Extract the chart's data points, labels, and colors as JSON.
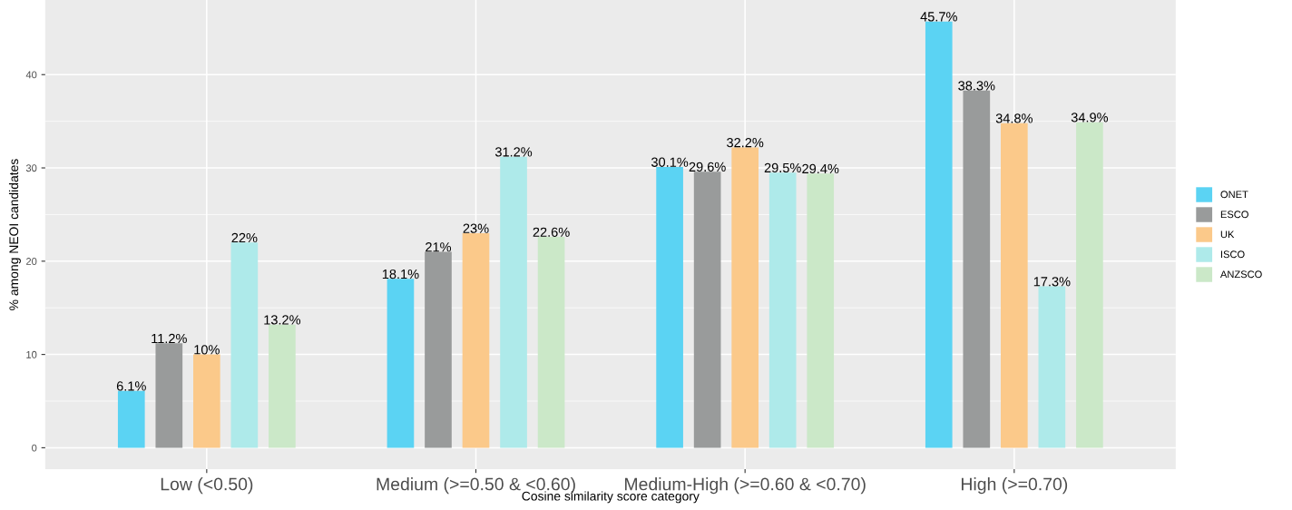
{
  "chart_data": {
    "type": "bar",
    "xlabel": "Cosine similarity score category",
    "ylabel": "% among NEOI candidates",
    "categories": [
      "Low (<0.50)",
      "Medium (>=0.50 & <0.60)",
      "Medium-High (>=0.60 & <0.70)",
      "High (>=0.70)"
    ],
    "series": [
      {
        "name": "ONET",
        "color": "#5bd3f3",
        "values": [
          6.1,
          18.1,
          30.1,
          45.7
        ],
        "value_labels": [
          "6.1%",
          "18.1%",
          "30.1%",
          "45.7%"
        ]
      },
      {
        "name": "ESCO",
        "color": "#999b9b",
        "values": [
          11.2,
          21,
          29.6,
          38.3
        ],
        "value_labels": [
          "11.2%",
          "21%",
          "29.6%",
          "38.3%"
        ]
      },
      {
        "name": "UK",
        "color": "#fbc98a",
        "values": [
          10,
          23,
          32.2,
          34.8
        ],
        "value_labels": [
          "10%",
          "23%",
          "32.2%",
          "34.8%"
        ]
      },
      {
        "name": "ISCO",
        "color": "#aeeaea",
        "values": [
          22,
          31.2,
          29.5,
          17.3
        ],
        "value_labels": [
          "22%",
          "31.2%",
          "29.5%",
          "17.3%"
        ]
      },
      {
        "name": "ANZSCO",
        "color": "#cbe8c8",
        "values": [
          13.2,
          22.6,
          29.4,
          34.9
        ],
        "value_labels": [
          "13.2%",
          "22.6%",
          "29.4%",
          "34.9%"
        ]
      }
    ],
    "ylim": [
      -2.3,
      48
    ],
    "yticks": [
      0,
      10,
      20,
      30,
      40
    ],
    "grid": true,
    "legend": "right"
  }
}
